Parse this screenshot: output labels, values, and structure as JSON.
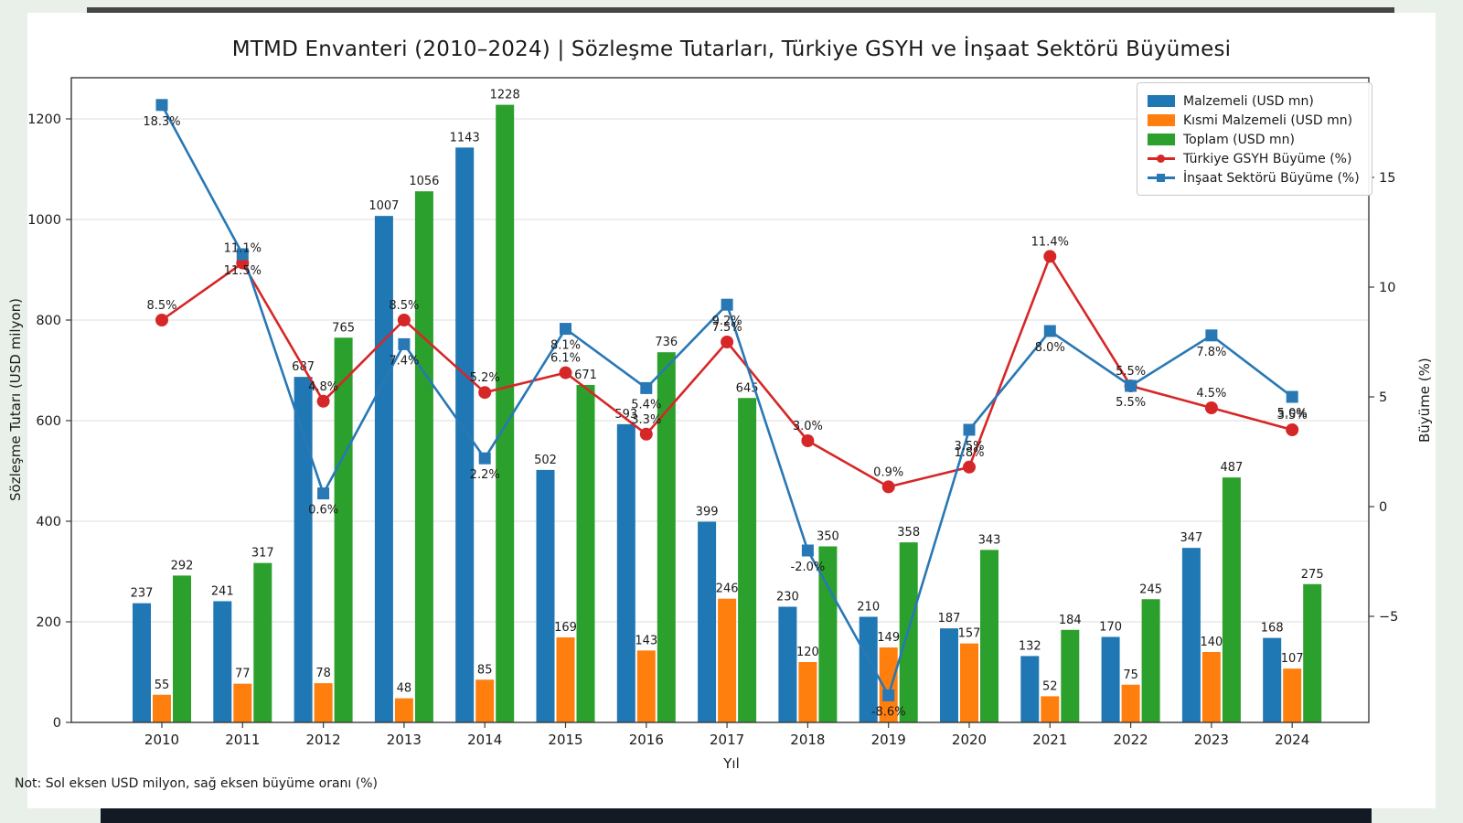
{
  "page": {
    "title": "MTMD Envanteri (2010–2024) | Sözleşme Tutarları, Türkiye GSYH ve İnşaat Sektörü Büyümesi",
    "note": "Not: Sol eksen USD milyon, sağ eksen büyüme oranı (%)"
  },
  "chart_data": {
    "type": "bar",
    "subtype": "grouped bars with two overlay lines (dual axis)",
    "title": "MTMD Envanteri (2010–2024) | Sözleşme Tutarları, Türkiye GSYH ve İnşaat Sektörü Büyümesi",
    "xlabel": "Yıl",
    "categories": [
      "2010",
      "2011",
      "2012",
      "2013",
      "2014",
      "2015",
      "2016",
      "2017",
      "2018",
      "2019",
      "2020",
      "2021",
      "2022",
      "2023",
      "2024"
    ],
    "bar_series": [
      {
        "name": "Malzemeli (USD mn)",
        "color": "#1f77b4",
        "values": [
          237,
          241,
          687,
          1007,
          1143,
          502,
          593,
          399,
          230,
          210,
          187,
          132,
          170,
          347,
          168
        ]
      },
      {
        "name": "Kısmi Malzemeli (USD mn)",
        "color": "#ff7f0e",
        "values": [
          55,
          77,
          78,
          48,
          85,
          169,
          143,
          246,
          120,
          149,
          157,
          52,
          75,
          140,
          107
        ]
      },
      {
        "name": "Toplam (USD mn)",
        "color": "#2ca02c",
        "values": [
          292,
          317,
          765,
          1056,
          1228,
          671,
          736,
          645,
          350,
          358,
          343,
          184,
          245,
          487,
          275
        ]
      }
    ],
    "line_series": [
      {
        "name": "Türkiye GSYH Büyüme (%)",
        "color": "#d62728",
        "marker": "circle",
        "values": [
          8.5,
          11.1,
          4.8,
          8.5,
          5.2,
          6.1,
          3.3,
          7.5,
          3.0,
          0.9,
          1.8,
          11.4,
          5.5,
          4.5,
          3.5
        ]
      },
      {
        "name": "İnşaat Sektörü Büyüme (%)",
        "color": "#2878b5",
        "marker": "square",
        "values": [
          18.3,
          11.5,
          0.6,
          7.4,
          2.2,
          8.1,
          5.4,
          9.2,
          -2.0,
          -8.6,
          3.5,
          8.0,
          5.5,
          7.8,
          5.0
        ]
      }
    ],
    "left_axis": {
      "label": "Sözleşme Tutarı (USD milyon)",
      "ticks": [
        0,
        200,
        400,
        600,
        800,
        1000,
        1200
      ],
      "range": [
        0,
        1282
      ]
    },
    "right_axis": {
      "label": "Büyüme (%)",
      "ticks": [
        -5,
        0,
        5,
        10,
        15
      ],
      "range": [
        -9.8,
        19.5
      ]
    },
    "legend_position": "upper right",
    "grid": "horizontal (left-axis ticks)"
  }
}
